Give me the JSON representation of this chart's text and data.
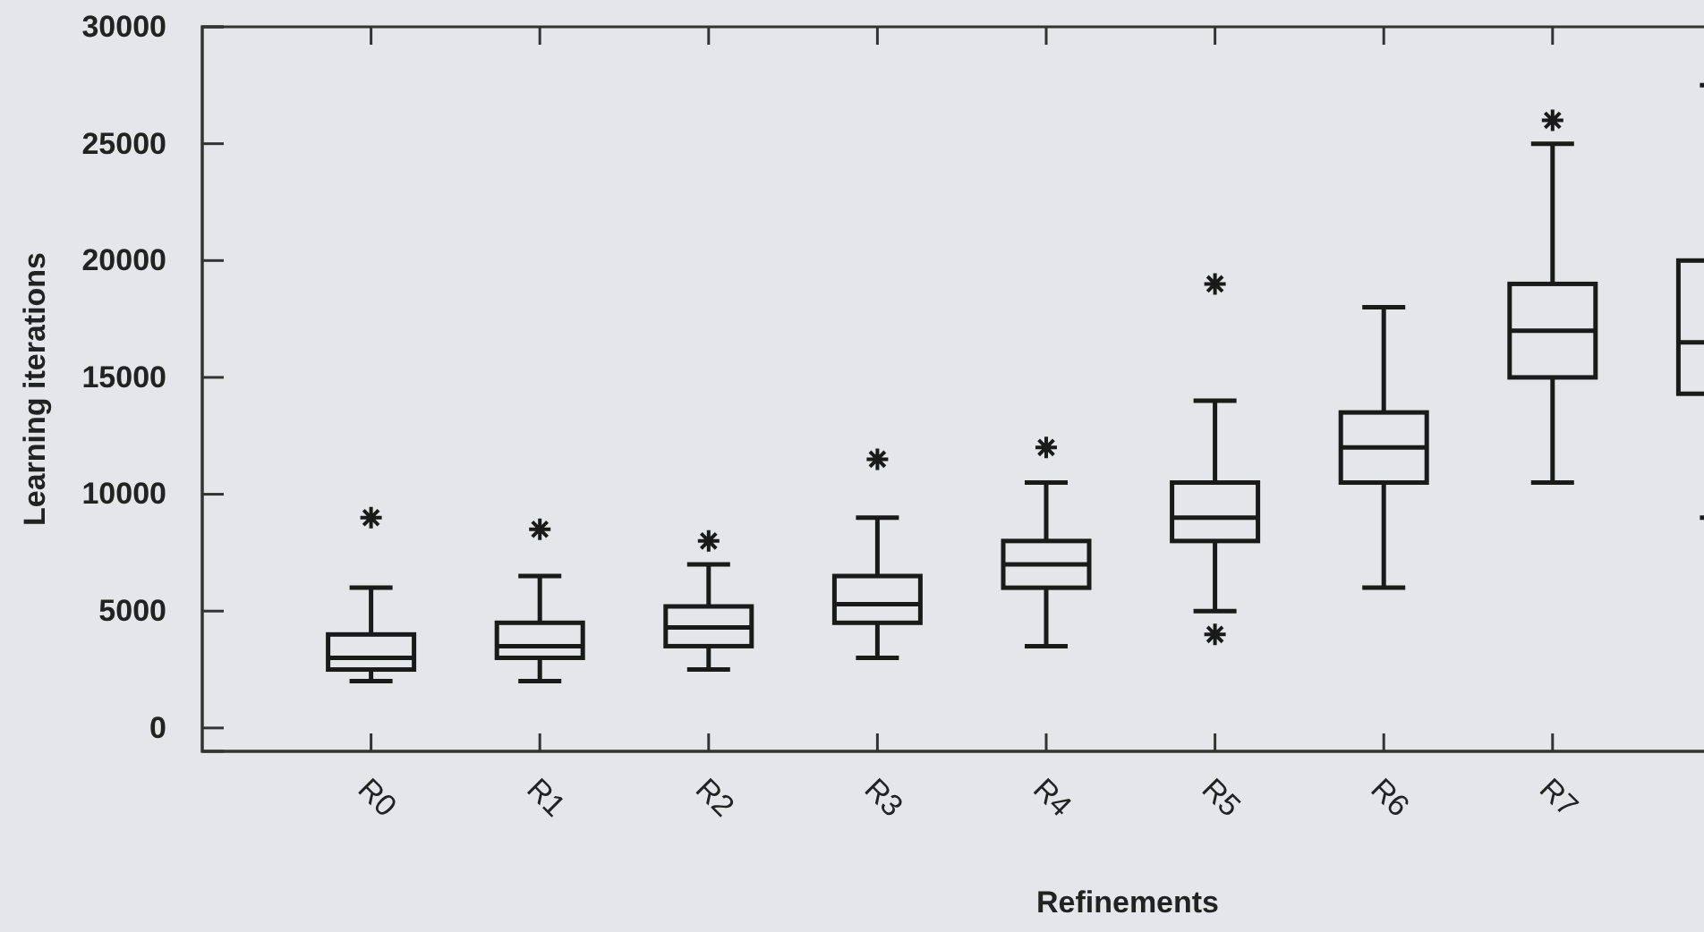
{
  "chart_data": {
    "type": "box",
    "xlabel": "Refinements",
    "ylabel": "Learning iterations",
    "categories": [
      "R0",
      "R1",
      "R2",
      "R3",
      "R4",
      "R5",
      "R6",
      "R7",
      null
    ],
    "boxes": [
      {
        "low": 2000,
        "q1": 2500,
        "median": 3000,
        "q3": 4000,
        "high": 6000,
        "outliers": [
          9000
        ]
      },
      {
        "low": 2000,
        "q1": 3000,
        "median": 3500,
        "q3": 4500,
        "high": 6500,
        "outliers": [
          8500
        ]
      },
      {
        "low": 2500,
        "q1": 3500,
        "median": 4300,
        "q3": 5200,
        "high": 7000,
        "outliers": [
          8000
        ]
      },
      {
        "low": 3000,
        "q1": 4500,
        "median": 5300,
        "q3": 6500,
        "high": 9000,
        "outliers": [
          11500
        ]
      },
      {
        "low": 3500,
        "q1": 6000,
        "median": 7000,
        "q3": 8000,
        "high": 10500,
        "outliers": [
          12000
        ]
      },
      {
        "low": 5000,
        "q1": 8000,
        "median": 9000,
        "q3": 10500,
        "high": 14000,
        "outliers": [
          19000,
          4000
        ]
      },
      {
        "low": 6000,
        "q1": 10500,
        "median": 12000,
        "q3": 13500,
        "high": 18000
      },
      {
        "low": 10500,
        "q1": 15000,
        "median": 17000,
        "q3": 19000,
        "high": 25000,
        "outliers": [
          26000
        ]
      },
      {
        "low": 9000,
        "q1": 14300,
        "median": 16500,
        "q3": 20000,
        "high": 27500
      }
    ],
    "color": "#1a1a1a",
    "marker": "star",
    "ylim": [
      -1000,
      30000
    ],
    "yticks": [
      0,
      5000,
      10000,
      15000,
      20000,
      25000,
      30000
    ],
    "grid": false
  }
}
